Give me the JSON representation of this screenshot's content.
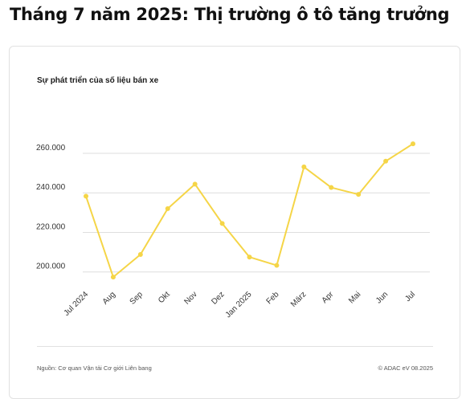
{
  "headline": "Tháng 7 năm 2025: Thị trường ô tô tăng trưởng",
  "card": {
    "source": "Nguồn: Cơ quan Vận tải Cơ giới Liên bang",
    "copyright": "© ADAC eV 08.2025"
  },
  "chart_data": {
    "type": "line",
    "title": "Sự phát triển của số liệu bán xe",
    "xlabel": "",
    "ylabel": "",
    "categories": [
      "Jul 2024",
      "Aug",
      "Sep",
      "Okt",
      "Nov",
      "Dez",
      "Jan 2025",
      "Feb",
      "März",
      "Apr",
      "Mai",
      "Jun",
      "Jul"
    ],
    "series": [
      {
        "values": [
          238300,
          197400,
          208800,
          232000,
          244400,
          224500,
          207500,
          203300,
          253100,
          242700,
          239200,
          256000,
          264800
        ]
      }
    ],
    "ylim": [
      195000,
      275000
    ],
    "yticks": [
      200000,
      220000,
      240000,
      260000
    ],
    "ytick_labels": [
      "200.000",
      "220.000",
      "240.000",
      "260.000"
    ],
    "grid": "horizontal",
    "legend": "none",
    "color": "#f5d547"
  }
}
